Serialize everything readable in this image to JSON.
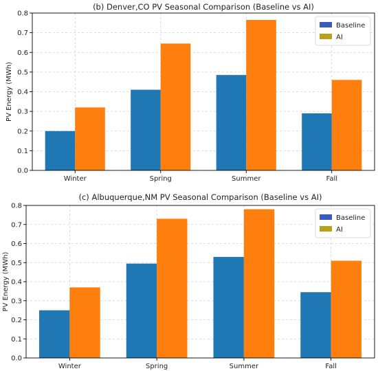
{
  "colors": {
    "baseline": "#1f77b4",
    "ai": "#ff7f0e",
    "legend_baseline": "#3b5bbf",
    "legend_ai": "#b8a21a",
    "grid": "#c8d0dc"
  },
  "chart_data": [
    {
      "type": "bar",
      "title": "(b) Denver,CO PV Seasonal Comparison (Baseline vs AI)",
      "xlabel": "",
      "ylabel": "PV Energy (MWh)",
      "categories": [
        "Winter",
        "Spring",
        "Summer",
        "Fall"
      ],
      "series": [
        {
          "name": "Baseline",
          "values": [
            0.2,
            0.41,
            0.485,
            0.29
          ]
        },
        {
          "name": "AI",
          "values": [
            0.32,
            0.645,
            0.765,
            0.46
          ]
        }
      ],
      "ylim": [
        0,
        0.8
      ],
      "yticks": [
        "0.0",
        "0.1",
        "0.2",
        "0.3",
        "0.4",
        "0.5",
        "0.6",
        "0.7",
        "0.8"
      ],
      "grid": true,
      "legend": "top-right"
    },
    {
      "type": "bar",
      "title": "(c) Albuquerque,NM PV Seasonal Comparison (Baseline vs AI)",
      "xlabel": "",
      "ylabel": "PV Energy (MWh)",
      "categories": [
        "Winter",
        "Spring",
        "Summer",
        "Fall"
      ],
      "series": [
        {
          "name": "Baseline",
          "values": [
            0.25,
            0.495,
            0.53,
            0.345
          ]
        },
        {
          "name": "AI",
          "values": [
            0.37,
            0.73,
            0.78,
            0.51
          ]
        }
      ],
      "ylim": [
        0,
        0.8
      ],
      "yticks": [
        "0.0",
        "0.1",
        "0.2",
        "0.3",
        "0.4",
        "0.5",
        "0.6",
        "0.7",
        "0.8"
      ],
      "grid": true,
      "legend": "top-right"
    }
  ]
}
